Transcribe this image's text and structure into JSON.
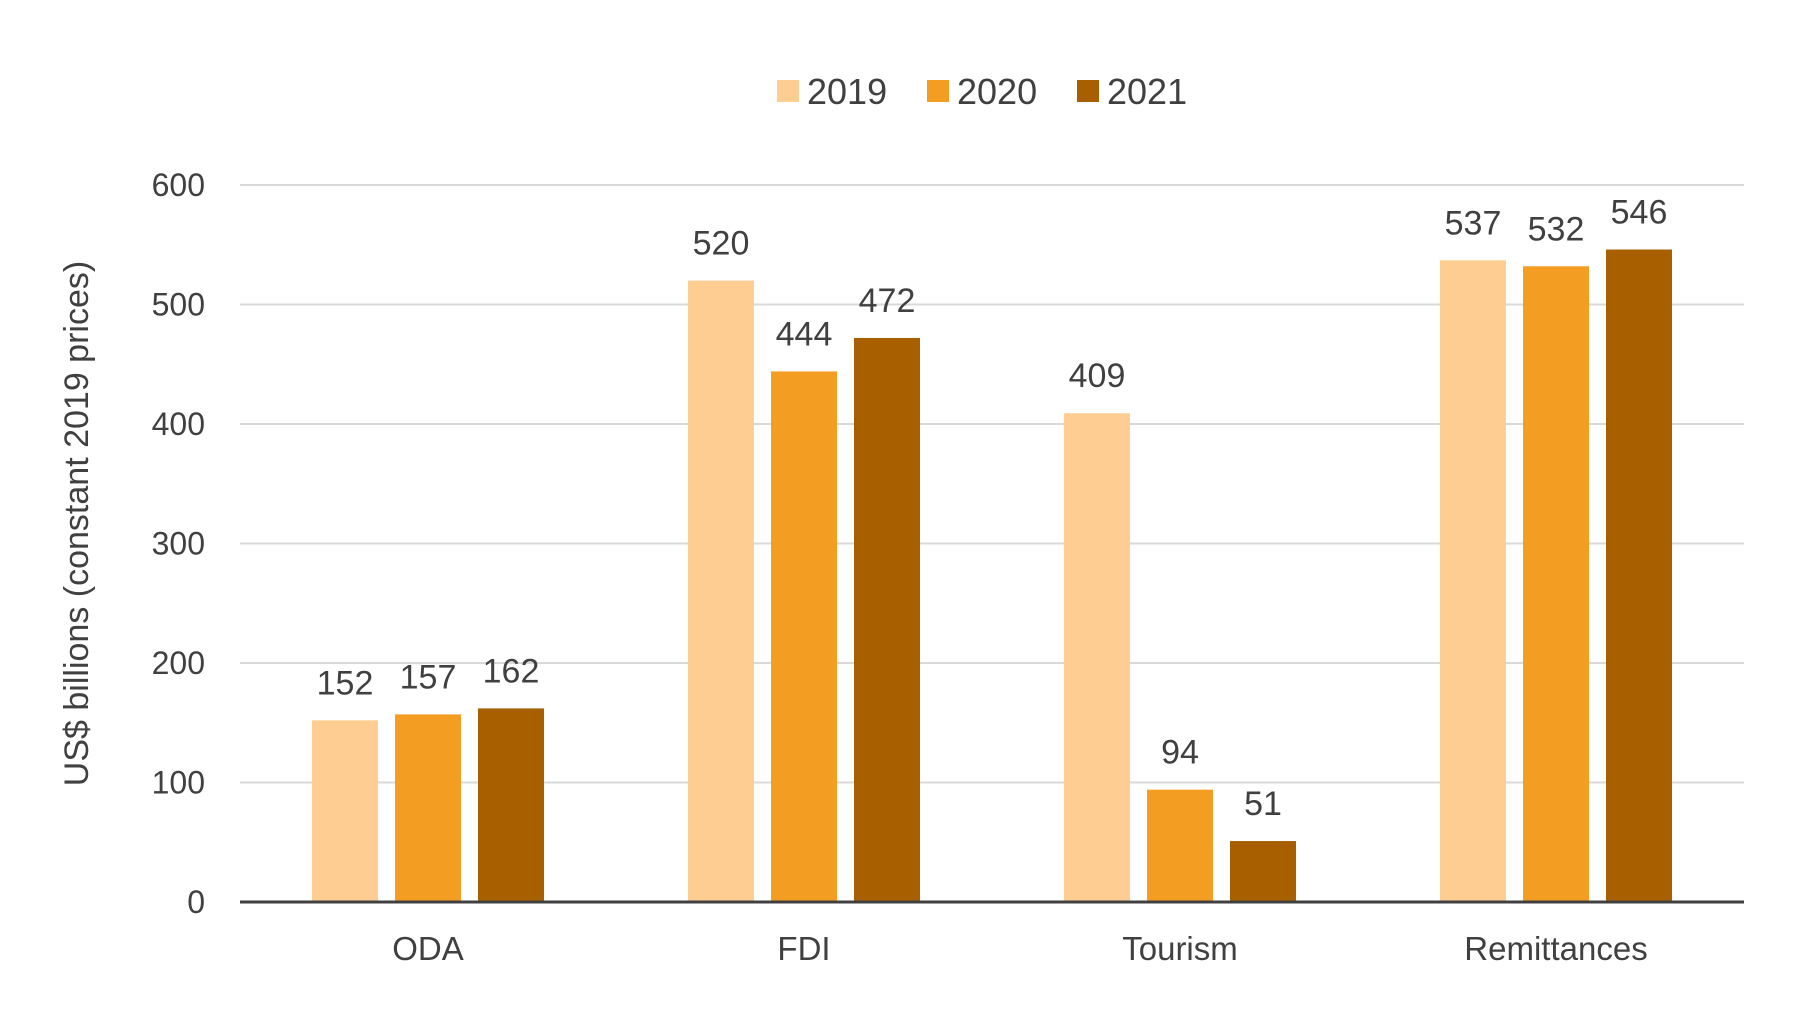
{
  "chart_data": {
    "type": "bar",
    "title": "",
    "xlabel": "",
    "ylabel": "US$ billions (constant 2019 prices)",
    "ylim": [
      0,
      600
    ],
    "yticks": [
      0,
      100,
      200,
      300,
      400,
      500,
      600
    ],
    "grid": true,
    "legend_position": "top-center",
    "categories": [
      "ODA",
      "FDI",
      "Tourism",
      "Remittances"
    ],
    "series": [
      {
        "name": "2019",
        "color": "#fdcd91",
        "values": [
          152,
          520,
          409,
          537
        ]
      },
      {
        "name": "2020",
        "color": "#f49d23",
        "values": [
          157,
          444,
          94,
          532
        ]
      },
      {
        "name": "2021",
        "color": "#a85f00",
        "values": [
          162,
          472,
          51,
          546
        ]
      }
    ]
  }
}
